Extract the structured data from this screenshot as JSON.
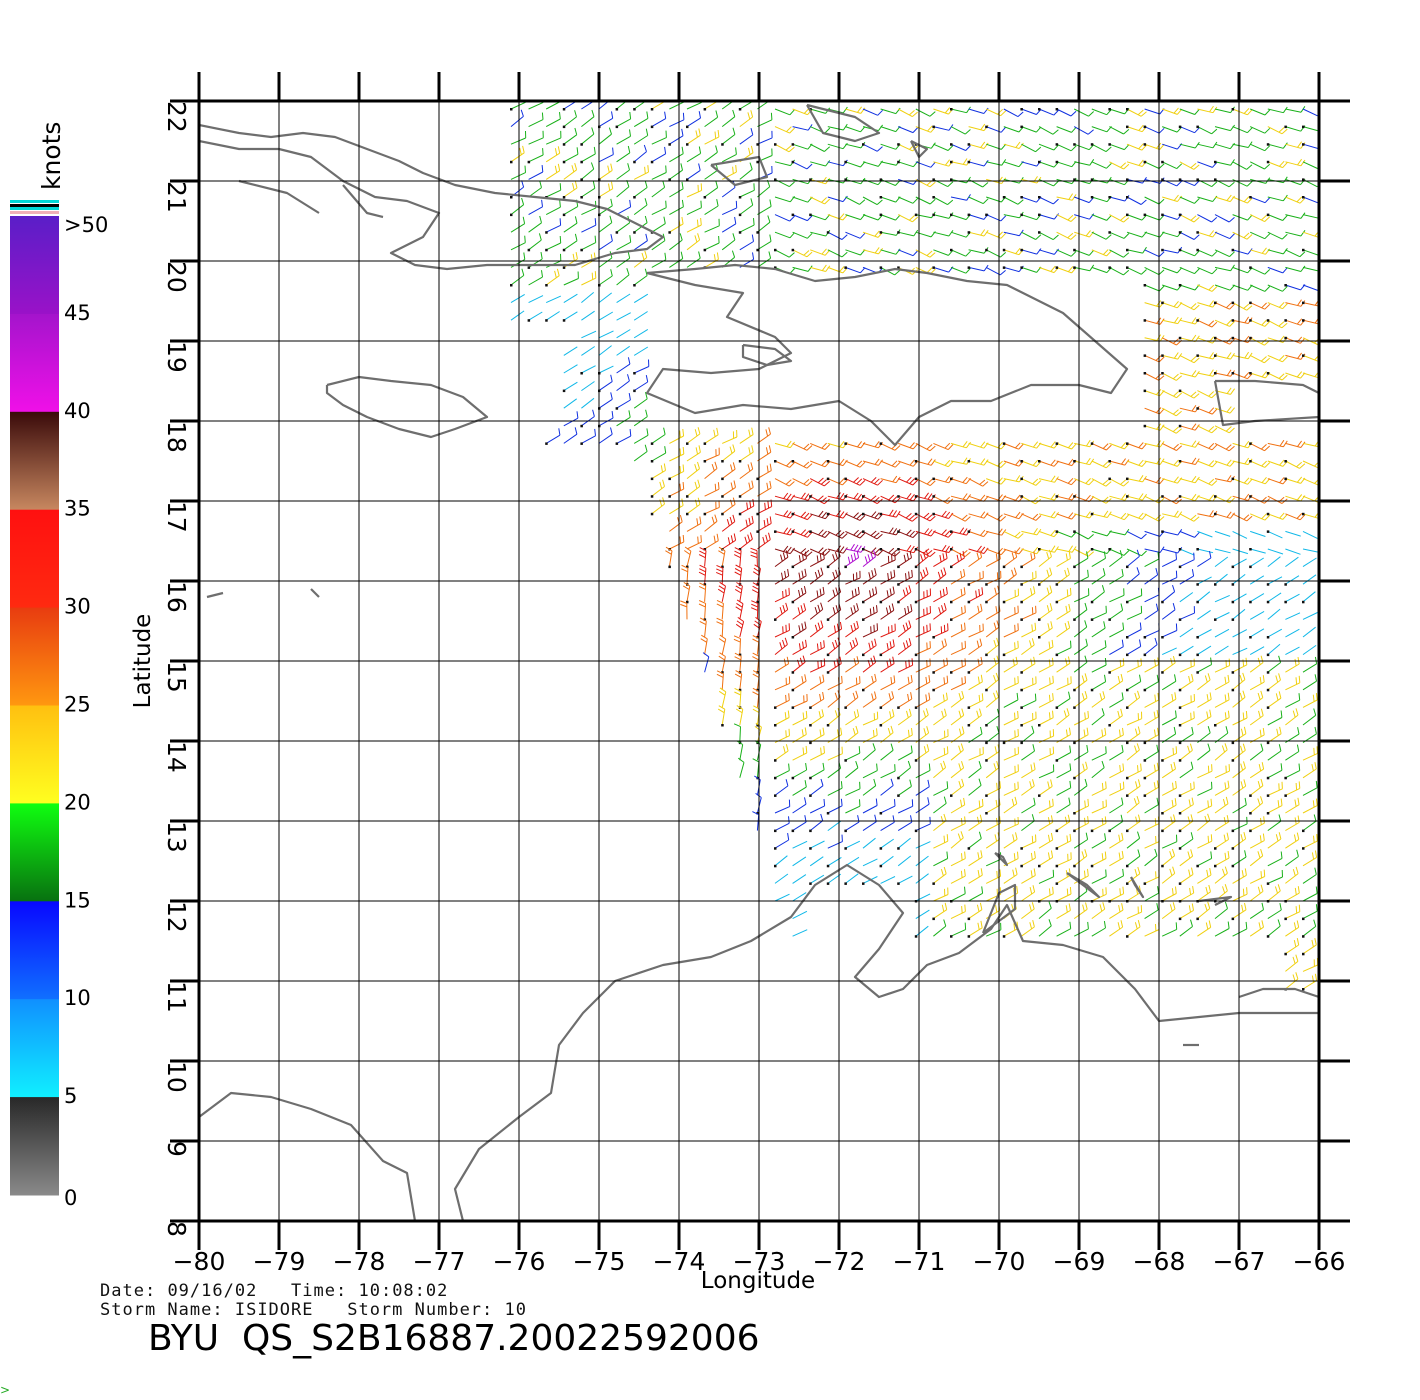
{
  "map": {
    "longitude_ticks": [
      "-80",
      "-79",
      "-78",
      "-77",
      "-76",
      "-75",
      "-74",
      "-73",
      "-72",
      "-71",
      "-70",
      "-69",
      "-68",
      "-67",
      "-66"
    ],
    "latitude_ticks": [
      "8",
      "9",
      "10",
      "11",
      "12",
      "13",
      "14",
      "15",
      "16",
      "17",
      "18",
      "19",
      "20",
      "21",
      "22"
    ],
    "xlabel": "Longitude",
    "ylabel": "Latitude",
    "lon_range": [
      -80,
      -66
    ],
    "lat_range": [
      8,
      22
    ],
    "grid": true,
    "land_outline_color": "#6e6e6e"
  },
  "colorbar": {
    "unit": "knots",
    "tick_labels": [
      ">50",
      "45",
      "40",
      "35",
      "30",
      "25",
      "20",
      "15",
      "10",
      "5",
      "0"
    ],
    "bands": [
      {
        "range": [
          45,
          50
        ],
        "from": "#5a1ec8",
        "to": "#9a12c8"
      },
      {
        "range": [
          40,
          45
        ],
        "from": "#a414cc",
        "to": "#f010e8"
      },
      {
        "range": [
          35,
          40
        ],
        "from": "#3a0a0a",
        "to": "#c88860"
      },
      {
        "range": [
          30,
          35
        ],
        "from": "#ff1010",
        "to": "#ff2a10"
      },
      {
        "range": [
          25,
          30
        ],
        "from": "#e83c10",
        "to": "#ff9810"
      },
      {
        "range": [
          20,
          25
        ],
        "from": "#ffc010",
        "to": "#ffff20"
      },
      {
        "range": [
          15,
          20
        ],
        "from": "#10ff10",
        "to": "#087010"
      },
      {
        "range": [
          10,
          15
        ],
        "from": "#0808ff",
        "to": "#1070ff"
      },
      {
        "range": [
          5,
          10
        ],
        "from": "#1090ff",
        "to": "#10f0ff"
      },
      {
        "range": [
          0,
          5
        ],
        "from": "#282828",
        "to": "#8a8a8a"
      }
    ]
  },
  "metadata": {
    "date_label": "Date:",
    "date": "09/16/02",
    "time_label": "Time:",
    "time": "10:08:02",
    "storm_name_label": "Storm Name:",
    "storm_name": "ISIDORE",
    "storm_number_label": "Storm Number:",
    "storm_number": "10"
  },
  "title": "BYU  QS_S2B16887.20022592006",
  "corner_glyph": ">"
}
